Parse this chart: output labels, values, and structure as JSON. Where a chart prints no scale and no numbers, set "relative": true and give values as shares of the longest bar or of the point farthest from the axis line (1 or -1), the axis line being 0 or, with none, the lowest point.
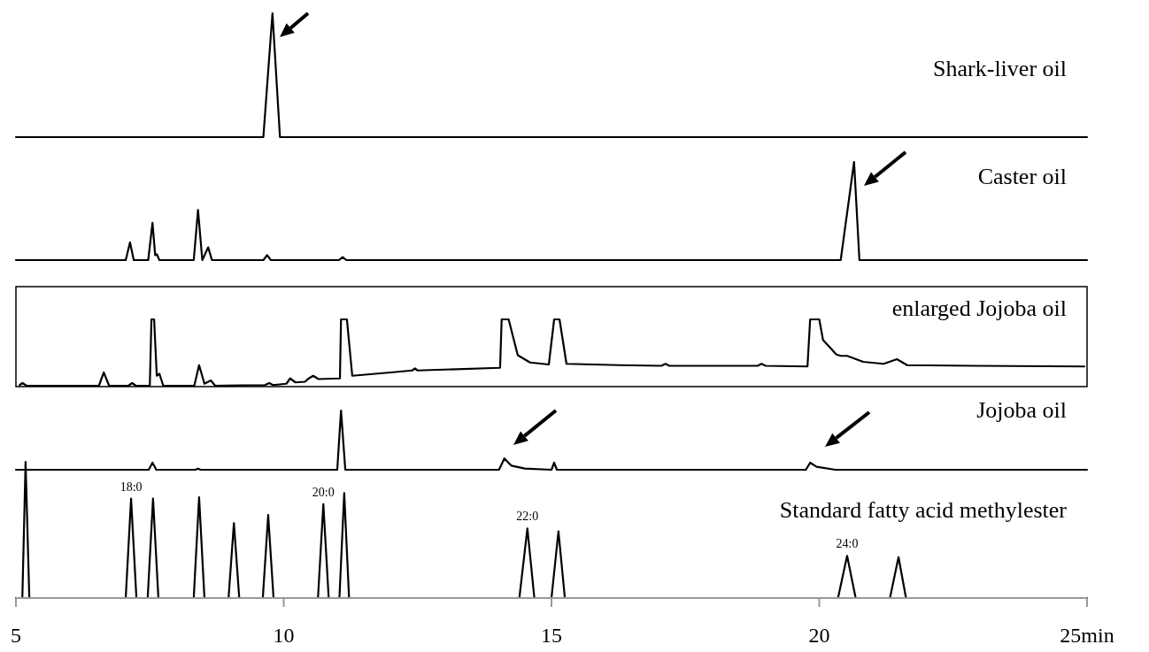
{
  "chart_data": [
    {
      "type": "line",
      "title": "Shark-liver oil",
      "relative": true,
      "color": "#000000",
      "xlim": [
        5,
        25
      ],
      "tick_labels": false,
      "x": [
        5,
        9.62,
        9.79,
        9.93,
        25
      ],
      "values": [
        0,
        0,
        1,
        0,
        0
      ]
    },
    {
      "type": "line",
      "title": "Caster oil",
      "relative": true,
      "color": "#000000",
      "xlim": [
        5,
        25
      ],
      "tick_labels": false,
      "x": [
        5,
        7.05,
        7.13,
        7.2,
        7.47,
        7.55,
        7.6,
        7.63,
        7.68,
        8.32,
        8.4,
        8.48,
        8.59,
        8.66,
        9.62,
        9.69,
        9.76,
        11.03,
        11.1,
        11.17,
        20.4,
        20.65,
        20.75,
        25
      ],
      "values": [
        0,
        0,
        0.18,
        0,
        0,
        0.38,
        0.05,
        0.06,
        0,
        0,
        0.51,
        0,
        0.13,
        0,
        0,
        0.05,
        0,
        0,
        0.03,
        0,
        0,
        1,
        0,
        0
      ]
    },
    {
      "type": "line",
      "title": "enlarged Jojoba oil",
      "relative": true,
      "color": "#000000",
      "xlim": [
        5,
        25
      ],
      "tick_labels": false,
      "x": [
        5.07,
        5.12,
        5.2,
        6.55,
        6.64,
        6.74,
        7.1,
        7.17,
        7.24,
        7.5,
        7.53,
        7.58,
        7.63,
        7.68,
        7.75,
        8.33,
        8.42,
        8.52,
        8.64,
        8.72,
        9.65,
        9.73,
        9.8,
        10.05,
        10.12,
        10.22,
        10.4,
        10.45,
        10.55,
        10.65,
        11.05,
        11.07,
        11.18,
        11.28,
        12.0,
        12.4,
        12.45,
        12.5,
        14.04,
        14.07,
        14.2,
        14.37,
        14.6,
        14.95,
        15.05,
        15.15,
        15.28,
        16.27,
        17.05,
        17.13,
        17.2,
        18.85,
        18.92,
        19.0,
        19.78,
        19.83,
        20.0,
        20.07,
        20.32,
        20.4,
        20.52,
        20.82,
        21.2,
        21.31,
        21.45,
        21.64,
        22.9,
        24.95
      ],
      "values": [
        0.01,
        0.04,
        0,
        0,
        0.2,
        0,
        0,
        0.04,
        0,
        0,
        1,
        1,
        0.15,
        0.18,
        0,
        0,
        0.31,
        0.03,
        0.08,
        0,
        0.01,
        0.04,
        0.01,
        0.03,
        0.11,
        0.05,
        0.06,
        0.1,
        0.15,
        0.1,
        0.11,
        1,
        1,
        0.15,
        0.2,
        0.23,
        0.26,
        0.23,
        0.27,
        1,
        1,
        0.46,
        0.35,
        0.32,
        1,
        1,
        0.33,
        0.31,
        0.3,
        0.33,
        0.3,
        0.3,
        0.33,
        0.3,
        0.29,
        1,
        1,
        0.69,
        0.47,
        0.45,
        0.45,
        0.36,
        0.33,
        0.36,
        0.4,
        0.31,
        0.3,
        0.29
      ]
    },
    {
      "type": "line",
      "title": "Jojoba oil",
      "relative": true,
      "color": "#000000",
      "xlim": [
        5,
        25
      ],
      "tick_labels": false,
      "x": [
        5,
        7.48,
        7.55,
        7.62,
        8.35,
        8.4,
        8.45,
        11.0,
        11.07,
        11.15,
        14.02,
        14.12,
        14.25,
        14.5,
        15.0,
        15.05,
        15.1,
        19.75,
        19.83,
        19.95,
        20.3,
        25
      ],
      "values": [
        0,
        0,
        0.12,
        0,
        0,
        0.02,
        0,
        0,
        1,
        0,
        0,
        0.19,
        0.07,
        0.02,
        0,
        0.12,
        0,
        0,
        0.12,
        0.05,
        0,
        0
      ]
    },
    {
      "type": "line",
      "title": "Standard fatty acid methylester",
      "relative": true,
      "color": "#000000",
      "xlim": [
        5,
        25
      ],
      "xticks": [
        5,
        10,
        15,
        20,
        {
          "value": 25,
          "label": "25min"
        }
      ],
      "x": [
        5.0,
        5.12,
        5.18,
        5.25,
        7.05,
        7.15,
        7.25,
        7.46,
        7.56,
        7.66,
        8.32,
        8.42,
        8.52,
        8.97,
        9.07,
        9.17,
        9.61,
        9.71,
        9.81,
        10.64,
        10.74,
        10.84,
        11.04,
        11.13,
        11.22,
        14.4,
        14.55,
        14.68,
        15.0,
        15.13,
        15.25,
        20.35,
        20.52,
        20.68,
        21.32,
        21.48,
        21.62,
        25
      ],
      "values": [
        0,
        0,
        1,
        0,
        0,
        0.73,
        0,
        0,
        0.73,
        0,
        0,
        0.74,
        0,
        0,
        0.55,
        0,
        0,
        0.61,
        0,
        0,
        0.69,
        0,
        0,
        0.77,
        0,
        0,
        0.51,
        0,
        0,
        0.49,
        0,
        0,
        0.31,
        0,
        0,
        0.3,
        0,
        0
      ],
      "annotations": [
        {
          "text": "18:0",
          "x": 7.15,
          "y": 0.73
        },
        {
          "text": "20:0",
          "x": 10.74,
          "y": 0.69
        },
        {
          "text": "22:0",
          "x": 14.55,
          "y": 0.51
        },
        {
          "text": "24:0",
          "x": 20.52,
          "y": 0.31
        }
      ]
    }
  ]
}
